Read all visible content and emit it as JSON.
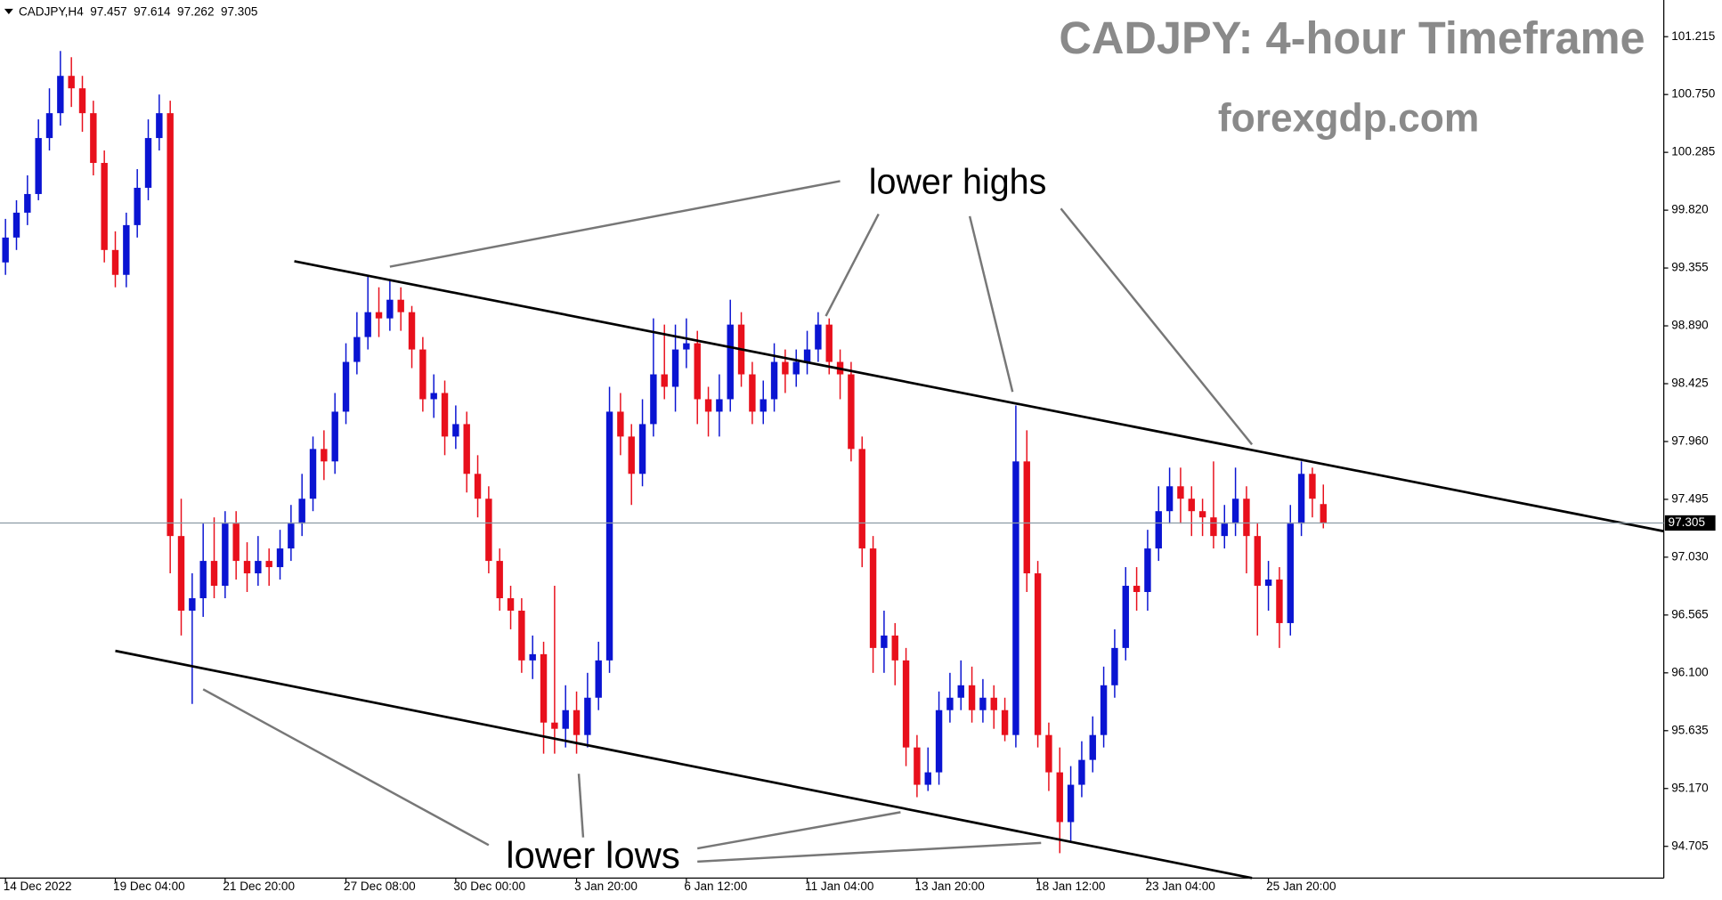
{
  "chart_data": {
    "type": "candlestick",
    "symbol": "CADJPY,H4",
    "title": "CADJPY: 4-hour Timeframe",
    "subtitle": "forexgdp.com",
    "annotations": [
      "lower highs",
      "lower lows"
    ],
    "up_color": "#0a14d2",
    "down_color": "#e8101c",
    "categories": [
      "14 Dec 2022",
      null,
      null,
      null,
      null,
      null,
      null,
      null,
      null,
      null,
      "19 Dec 04:00",
      null,
      null,
      null,
      null,
      null,
      null,
      null,
      null,
      null,
      "21 Dec 20:00",
      null,
      null,
      null,
      null,
      null,
      null,
      null,
      null,
      null,
      null,
      "27 Dec 08:00",
      null,
      null,
      null,
      null,
      null,
      null,
      null,
      null,
      null,
      "30 Dec 00:00",
      null,
      null,
      null,
      null,
      null,
      null,
      null,
      null,
      null,
      null,
      "3 Jan 20:00",
      null,
      null,
      null,
      null,
      null,
      null,
      null,
      null,
      null,
      "6 Jan 12:00",
      null,
      null,
      null,
      null,
      null,
      null,
      null,
      null,
      null,
      null,
      "11 Jan 04:00",
      null,
      null,
      null,
      null,
      null,
      null,
      null,
      null,
      null,
      "13 Jan 20:00",
      null,
      null,
      null,
      null,
      null,
      null,
      null,
      null,
      null,
      null,
      "18 Jan 12:00",
      null,
      null,
      null,
      null,
      null,
      null,
      null,
      null,
      null,
      "23 Jan 04:00",
      null,
      null,
      null,
      null,
      null,
      null,
      null,
      null,
      null,
      null,
      "25 Jan 20:00",
      null,
      null,
      null,
      null,
      null
    ],
    "open": [
      99.4,
      99.6,
      99.8,
      99.95,
      100.4,
      100.6,
      100.9,
      100.8,
      100.6,
      100.2,
      99.5,
      99.3,
      99.7,
      100.0,
      100.4,
      100.6,
      97.2,
      96.6,
      96.7,
      97.0,
      96.8,
      97.3,
      97.0,
      96.9,
      97.0,
      96.95,
      97.1,
      97.3,
      97.5,
      97.9,
      97.8,
      98.2,
      98.6,
      98.8,
      99.0,
      98.95,
      99.1,
      99.0,
      98.7,
      98.3,
      98.35,
      98.0,
      98.1,
      97.7,
      97.5,
      97.0,
      96.7,
      96.6,
      96.2,
      96.25,
      95.7,
      95.65,
      95.8,
      95.6,
      95.9,
      96.2,
      98.2,
      98.0,
      97.7,
      98.1,
      98.5,
      98.4,
      98.7,
      98.75,
      98.3,
      98.2,
      98.3,
      98.9,
      98.5,
      98.2,
      98.3,
      98.6,
      98.5,
      98.6,
      98.7,
      98.9,
      98.6,
      98.5,
      97.9,
      97.1,
      96.3,
      96.4,
      96.2,
      95.5,
      95.2,
      95.3,
      95.8,
      95.9,
      96.0,
      95.8,
      95.9,
      95.8,
      95.6,
      97.8,
      96.9,
      95.6,
      95.3,
      94.9,
      95.2,
      95.4,
      95.6,
      96.0,
      96.3,
      96.8,
      96.75,
      97.1,
      97.4,
      97.6,
      97.5,
      97.4,
      97.35,
      97.2,
      97.3,
      97.5,
      97.2,
      96.8,
      96.85,
      96.5,
      97.3,
      97.7,
      97.457
    ],
    "high": [
      99.75,
      99.9,
      100.1,
      100.55,
      100.8,
      101.1,
      101.05,
      100.9,
      100.7,
      100.3,
      99.65,
      99.8,
      100.15,
      100.55,
      100.75,
      100.7,
      97.5,
      96.9,
      97.3,
      97.35,
      97.4,
      97.4,
      97.15,
      97.2,
      97.1,
      97.25,
      97.45,
      97.7,
      98.0,
      98.05,
      98.35,
      98.75,
      99.0,
      99.3,
      99.2,
      99.25,
      99.2,
      99.05,
      98.8,
      98.5,
      98.45,
      98.25,
      98.2,
      97.85,
      97.6,
      97.1,
      96.8,
      96.7,
      96.4,
      96.35,
      96.8,
      96.0,
      95.95,
      96.1,
      96.35,
      98.4,
      98.35,
      98.1,
      98.3,
      98.95,
      98.9,
      98.9,
      98.95,
      98.85,
      98.4,
      98.5,
      99.1,
      99.0,
      98.6,
      98.45,
      98.75,
      98.7,
      98.7,
      98.85,
      99.0,
      98.95,
      98.7,
      98.6,
      98.0,
      97.2,
      96.6,
      96.5,
      96.3,
      95.6,
      95.5,
      95.95,
      96.1,
      96.2,
      96.15,
      96.05,
      96.0,
      95.9,
      98.25,
      98.05,
      97.0,
      95.7,
      95.5,
      95.35,
      95.55,
      95.75,
      96.15,
      96.45,
      96.95,
      96.95,
      97.25,
      97.6,
      97.75,
      97.75,
      97.6,
      97.5,
      97.8,
      97.45,
      97.75,
      97.6,
      97.3,
      97.0,
      96.95,
      97.45,
      97.8,
      97.75,
      97.614
    ],
    "low": [
      99.3,
      99.5,
      99.7,
      99.9,
      100.3,
      100.5,
      100.65,
      100.45,
      100.1,
      99.4,
      99.2,
      99.2,
      99.6,
      99.9,
      100.3,
      96.9,
      96.4,
      95.85,
      96.55,
      96.7,
      96.7,
      96.85,
      96.75,
      96.8,
      96.8,
      96.85,
      97.0,
      97.2,
      97.4,
      97.65,
      97.7,
      98.1,
      98.5,
      98.7,
      98.8,
      98.85,
      98.85,
      98.55,
      98.2,
      98.15,
      97.85,
      97.9,
      97.55,
      97.35,
      96.9,
      96.6,
      96.45,
      96.1,
      96.05,
      95.45,
      95.45,
      95.5,
      95.45,
      95.5,
      95.8,
      96.1,
      97.85,
      97.45,
      97.6,
      98.0,
      98.3,
      98.2,
      98.55,
      98.1,
      98.0,
      98.0,
      98.2,
      98.4,
      98.1,
      98.1,
      98.2,
      98.35,
      98.4,
      98.5,
      98.6,
      98.5,
      98.3,
      97.8,
      96.95,
      96.1,
      96.1,
      96.0,
      95.35,
      95.1,
      95.15,
      95.2,
      95.7,
      95.8,
      95.7,
      95.7,
      95.65,
      95.55,
      95.5,
      96.75,
      95.5,
      95.15,
      94.65,
      94.75,
      95.1,
      95.3,
      95.5,
      95.9,
      96.2,
      96.6,
      96.6,
      97.0,
      97.3,
      97.3,
      97.2,
      97.2,
      97.1,
      97.1,
      97.2,
      96.9,
      96.4,
      96.6,
      96.3,
      96.4,
      97.2,
      97.35,
      97.262
    ],
    "close": [
      99.6,
      99.8,
      99.95,
      100.4,
      100.6,
      100.9,
      100.8,
      100.6,
      100.2,
      99.5,
      99.3,
      99.7,
      100.0,
      100.4,
      100.6,
      97.2,
      96.6,
      96.7,
      97.0,
      96.8,
      97.3,
      97.0,
      96.9,
      97.0,
      96.95,
      97.1,
      97.3,
      97.5,
      97.9,
      97.8,
      98.2,
      98.6,
      98.8,
      99.0,
      98.95,
      99.1,
      99.0,
      98.7,
      98.3,
      98.35,
      98.0,
      98.1,
      97.7,
      97.5,
      97.0,
      96.7,
      96.6,
      96.2,
      96.25,
      95.7,
      95.65,
      95.8,
      95.6,
      95.9,
      96.2,
      98.2,
      98.0,
      97.7,
      98.1,
      98.5,
      98.4,
      98.7,
      98.75,
      98.3,
      98.2,
      98.3,
      98.9,
      98.5,
      98.2,
      98.3,
      98.6,
      98.5,
      98.6,
      98.7,
      98.9,
      98.6,
      98.5,
      97.9,
      97.1,
      96.3,
      96.4,
      96.2,
      95.5,
      95.2,
      95.3,
      95.8,
      95.9,
      96.0,
      95.8,
      95.9,
      95.8,
      95.6,
      97.8,
      96.9,
      95.6,
      95.3,
      94.9,
      95.2,
      95.4,
      95.6,
      96.0,
      96.3,
      96.8,
      96.75,
      97.1,
      97.4,
      97.6,
      97.5,
      97.4,
      97.35,
      97.2,
      97.3,
      97.5,
      97.2,
      96.8,
      96.85,
      96.5,
      97.3,
      97.7,
      97.5,
      97.305
    ],
    "ylim": [
      94.45,
      101.51
    ],
    "yticks": [
      94.705,
      {
        "value": 95.17,
        "label": "95.170"
      },
      95.635,
      {
        "value": 96.1,
        "label": "96.100"
      },
      96.565,
      {
        "value": 97.03,
        "label": "97.030"
      },
      97.495,
      {
        "value": 97.96,
        "label": "97.960"
      },
      98.425,
      {
        "value": 98.89,
        "label": "98.890"
      },
      99.355,
      {
        "value": 99.82,
        "label": "99.820"
      },
      100.285,
      {
        "value": 100.75,
        "label": "100.750"
      },
      101.215
    ]
  }
}
